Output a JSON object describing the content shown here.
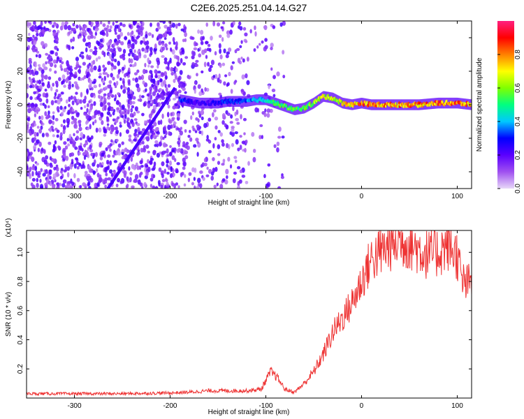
{
  "title": "C2E6.2025.251.04.14.G27",
  "chart_data": [
    {
      "type": "heatmap",
      "title": "C2E6.2025.251.04.14.G27",
      "xlabel": "Height of straight line (km)",
      "ylabel": "Frequency (Hz)",
      "xlim": [
        -350,
        115
      ],
      "ylim": [
        -50,
        50
      ],
      "xticks": [
        -300,
        -200,
        -100,
        0,
        100
      ],
      "yticks": [
        -40,
        -20,
        0,
        20,
        40
      ],
      "colorbar": {
        "label": "Normalized spectral amplitude",
        "range": [
          0,
          1
        ],
        "ticks": [
          0.0,
          0.2,
          0.4,
          0.6,
          0.8
        ],
        "tick_labels": [
          "0.0",
          "0.2",
          "0.4",
          "0.6",
          "0.8"
        ],
        "colormap": [
          "#e8d8f8",
          "#a050f0",
          "#5a00ff",
          "#0000ff",
          "#00c8ff",
          "#00ff80",
          "#80ff00",
          "#ffff00",
          "#ff8000",
          "#ff0000",
          "#ff2080"
        ]
      },
      "noise_region_km": [
        -350,
        -80
      ],
      "signal_trace": {
        "x": [
          -190,
          -180,
          -170,
          -160,
          -150,
          -140,
          -130,
          -120,
          -110,
          -100,
          -90,
          -80,
          -70,
          -60,
          -50,
          -40,
          -30,
          -20,
          -10,
          0,
          10,
          20,
          40,
          60,
          80,
          100,
          115
        ],
        "y": [
          3,
          2,
          1,
          1,
          1,
          2,
          2,
          2,
          3,
          3,
          1,
          -1,
          -3,
          -2,
          1,
          5,
          4,
          1,
          0,
          1,
          0,
          0,
          0,
          0,
          1,
          1,
          0
        ],
        "amplitude": [
          0.35,
          0.3,
          0.25,
          0.25,
          0.3,
          0.35,
          0.35,
          0.4,
          0.45,
          0.5,
          0.55,
          0.6,
          0.6,
          0.6,
          0.65,
          0.75,
          0.7,
          0.75,
          0.8,
          0.85,
          0.9,
          0.85,
          0.85,
          0.85,
          0.9,
          0.9,
          0.85
        ]
      }
    },
    {
      "type": "line",
      "xlabel": "Height of straight line (km)",
      "ylabel": "SNR (10 * v/v)",
      "exponent_label": "(x10⁴)",
      "xlim": [
        -350,
        115
      ],
      "ylim": [
        0,
        1.15
      ],
      "xticks": [
        -300,
        -200,
        -100,
        0,
        100
      ],
      "yticks": [
        0.2,
        0.4,
        0.6,
        0.8,
        1.0
      ],
      "ytick_labels": [
        "0.2",
        "0.4",
        "0.6",
        "0.8",
        "1.0"
      ],
      "series": [
        {
          "name": "SNR",
          "color": "#ee3333",
          "x": [
            -350,
            -300,
            -250,
            -200,
            -180,
            -160,
            -140,
            -120,
            -105,
            -95,
            -88,
            -80,
            -70,
            -60,
            -50,
            -40,
            -30,
            -20,
            -10,
            0,
            10,
            20,
            30,
            40,
            50,
            60,
            70,
            80,
            90,
            100,
            105,
            110,
            115
          ],
          "y": [
            0.03,
            0.03,
            0.03,
            0.035,
            0.04,
            0.05,
            0.05,
            0.05,
            0.06,
            0.18,
            0.14,
            0.06,
            0.04,
            0.1,
            0.18,
            0.3,
            0.45,
            0.55,
            0.65,
            0.8,
            0.95,
            1.0,
            1.05,
            1.08,
            1.06,
            1.02,
            0.98,
            1.0,
            1.05,
            0.98,
            0.8,
            0.78,
            0.8
          ]
        }
      ]
    }
  ]
}
